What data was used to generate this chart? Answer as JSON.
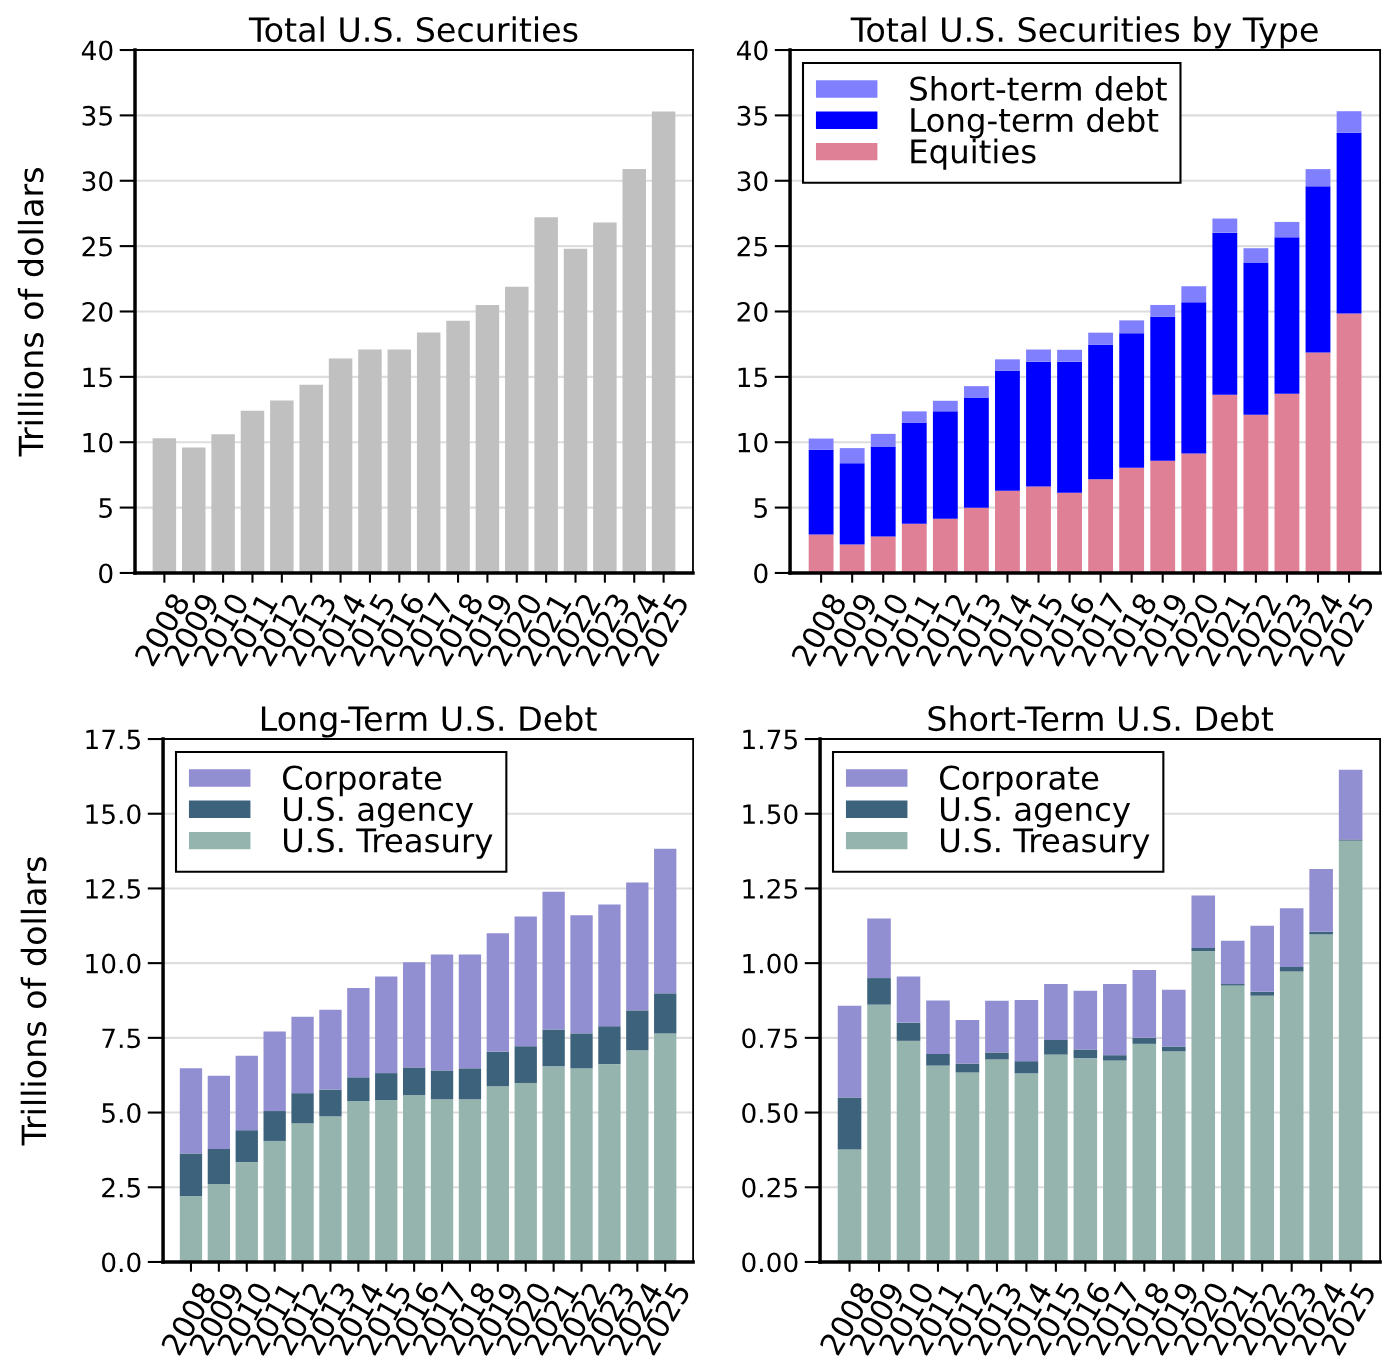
{
  "chart_data": [
    {
      "type": "bar",
      "title": "Total U.S. Securities",
      "ylabel": "Trillions of dollars",
      "categories": [
        "2008",
        "2009",
        "2010",
        "2011",
        "2012",
        "2013",
        "2014",
        "2015",
        "2016",
        "2017",
        "2018",
        "2019",
        "2020",
        "2021",
        "2022",
        "2023",
        "2024",
        "2025"
      ],
      "values": [
        10.3,
        9.6,
        10.6,
        12.4,
        13.2,
        14.4,
        16.4,
        17.1,
        17.1,
        18.4,
        19.3,
        20.5,
        21.9,
        27.2,
        24.8,
        26.8,
        30.9,
        35.3
      ],
      "color": "#c0c0c0",
      "ylim": [
        0,
        40
      ],
      "yticks": [
        0,
        5,
        10,
        15,
        20,
        25,
        30,
        35,
        40
      ],
      "grid": "y"
    },
    {
      "type": "bar",
      "title": "Total U.S. Securities by Type",
      "stacked": true,
      "legend": "top left",
      "categories": [
        "2008",
        "2009",
        "2010",
        "2011",
        "2012",
        "2013",
        "2014",
        "2015",
        "2016",
        "2017",
        "2018",
        "2019",
        "2020",
        "2021",
        "2022",
        "2023",
        "2024",
        "2025"
      ],
      "series": [
        {
          "name": "Equities",
          "color": "#df8096",
          "values": [
            2.94,
            2.17,
            2.78,
            3.77,
            4.15,
            4.98,
            6.29,
            6.61,
            6.13,
            7.16,
            8.05,
            8.59,
            9.14,
            13.64,
            12.11,
            13.71,
            16.87,
            19.84
          ]
        },
        {
          "name": "Long-term debt",
          "color": "#0000ff",
          "values": [
            6.48,
            6.23,
            6.9,
            7.71,
            8.21,
            8.44,
            9.17,
            9.55,
            10.03,
            10.29,
            10.29,
            11.0,
            11.56,
            12.39,
            11.6,
            11.96,
            12.7,
            13.83
          ]
        },
        {
          "name": "Short-term debt",
          "color": "#8080ff",
          "values": [
            0.86,
            1.15,
            0.96,
            0.88,
            0.81,
            0.87,
            0.88,
            0.93,
            0.91,
            0.93,
            0.98,
            0.91,
            1.23,
            1.08,
            1.13,
            1.18,
            1.32,
            1.65
          ]
        }
      ],
      "ylim": [
        0,
        40
      ],
      "yticks": [
        0,
        5,
        10,
        15,
        20,
        25,
        30,
        35,
        40
      ],
      "grid": "y"
    },
    {
      "type": "bar",
      "title": "Long-Term U.S. Debt",
      "ylabel": "Trillions of dollars",
      "stacked": true,
      "legend": "top left",
      "categories": [
        "2008",
        "2009",
        "2010",
        "2011",
        "2012",
        "2013",
        "2014",
        "2015",
        "2016",
        "2017",
        "2018",
        "2019",
        "2020",
        "2021",
        "2022",
        "2023",
        "2024",
        "2025"
      ],
      "series": [
        {
          "name": "U.S. Treasury",
          "color": "#96b4ae",
          "values": [
            2.21,
            2.61,
            3.34,
            4.05,
            4.64,
            4.87,
            5.38,
            5.42,
            5.58,
            5.44,
            5.44,
            5.88,
            5.99,
            6.55,
            6.48,
            6.62,
            7.08,
            7.65
          ]
        },
        {
          "name": "U.S. agency",
          "color": "#3d627c",
          "values": [
            1.42,
            1.17,
            1.07,
            1.0,
            1.01,
            0.9,
            0.8,
            0.9,
            0.93,
            0.97,
            1.04,
            1.16,
            1.23,
            1.23,
            1.17,
            1.27,
            1.34,
            1.34
          ]
        },
        {
          "name": "Corporate",
          "color": "#928ed2",
          "values": [
            2.85,
            2.45,
            2.49,
            2.66,
            2.56,
            2.67,
            2.99,
            3.23,
            3.52,
            3.88,
            3.81,
            3.96,
            4.34,
            4.61,
            3.95,
            4.07,
            4.28,
            4.84
          ]
        }
      ],
      "ylim": [
        0,
        17.5
      ],
      "yticks": [
        {
          "value": 0,
          "label": "0.0"
        },
        2.5,
        {
          "value": 5,
          "label": "5.0"
        },
        7.5,
        {
          "value": 10,
          "label": "10.0"
        },
        12.5,
        {
          "value": 15,
          "label": "15.0"
        },
        17.5
      ],
      "grid": "y"
    },
    {
      "type": "bar",
      "title": "Short-Term U.S. Debt",
      "stacked": true,
      "legend": "top left",
      "categories": [
        "2008",
        "2009",
        "2010",
        "2011",
        "2012",
        "2013",
        "2014",
        "2015",
        "2016",
        "2017",
        "2018",
        "2019",
        "2020",
        "2021",
        "2022",
        "2023",
        "2024",
        "2025"
      ],
      "series": [
        {
          "name": "U.S. Treasury",
          "color": "#96b4ae",
          "values": [
            0.376,
            0.861,
            0.74,
            0.657,
            0.634,
            0.678,
            0.631,
            0.694,
            0.682,
            0.674,
            0.73,
            0.705,
            1.04,
            0.925,
            0.891,
            0.972,
            1.096,
            1.41
          ]
        },
        {
          "name": "U.S. agency",
          "color": "#3d627c",
          "values": [
            0.174,
            0.089,
            0.061,
            0.039,
            0.03,
            0.023,
            0.041,
            0.049,
            0.029,
            0.018,
            0.02,
            0.016,
            0.011,
            0.005,
            0.013,
            0.015,
            0.009,
            0.004
          ]
        },
        {
          "name": "Corporate",
          "color": "#928ed2",
          "values": [
            0.307,
            0.199,
            0.154,
            0.179,
            0.146,
            0.173,
            0.205,
            0.187,
            0.197,
            0.238,
            0.227,
            0.19,
            0.175,
            0.145,
            0.221,
            0.197,
            0.21,
            0.233
          ]
        }
      ],
      "ylim": [
        0,
        1.75
      ],
      "yticks": [
        {
          "value": 0,
          "label": "0.00"
        },
        0.25,
        {
          "value": 0.5,
          "label": "0.50"
        },
        0.75,
        {
          "value": 1,
          "label": "1.00"
        },
        1.25,
        {
          "value": 1.5,
          "label": "1.50"
        },
        1.75
      ],
      "grid": "y"
    }
  ]
}
